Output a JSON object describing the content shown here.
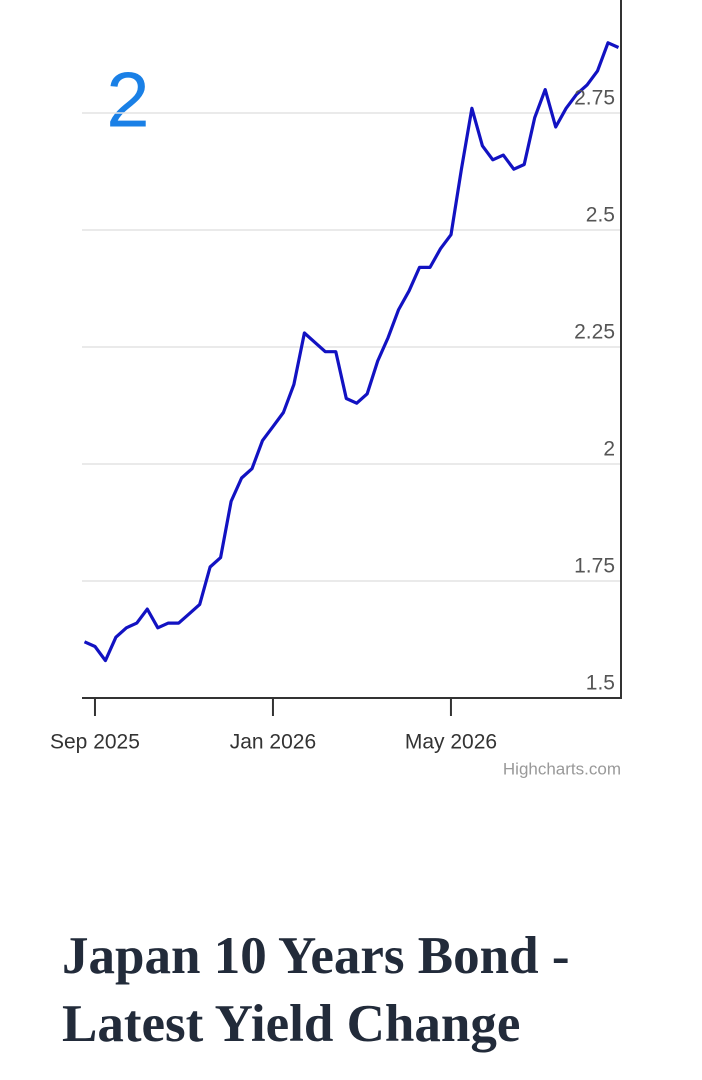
{
  "badge": "2",
  "heading": "Japan 10 Years Bond - Latest Yield Change",
  "chart_data": {
    "type": "line",
    "credits": "Highcharts.com",
    "categories": [
      null,
      "Sep 2025",
      null,
      null,
      null,
      null,
      null,
      null,
      null,
      null,
      null,
      null,
      null,
      null,
      null,
      null,
      null,
      null,
      "Jan 2026",
      null,
      null,
      null,
      null,
      null,
      null,
      null,
      null,
      null,
      null,
      null,
      null,
      null,
      null,
      null,
      null,
      "May 2026",
      null,
      null,
      null,
      null,
      null,
      null,
      null,
      null,
      null,
      null,
      null,
      null,
      null,
      null,
      null,
      null
    ],
    "series": [
      {
        "color": "#1212c2",
        "values": [
          1.62,
          1.61,
          1.58,
          1.63,
          1.65,
          1.66,
          1.69,
          1.65,
          1.66,
          1.66,
          1.68,
          1.7,
          1.78,
          1.8,
          1.92,
          1.97,
          1.99,
          2.05,
          2.08,
          2.11,
          2.17,
          2.28,
          2.26,
          2.24,
          2.24,
          2.14,
          2.13,
          2.15,
          2.22,
          2.27,
          2.33,
          2.37,
          2.42,
          2.42,
          2.46,
          2.49,
          2.63,
          2.76,
          2.68,
          2.65,
          2.66,
          2.63,
          2.64,
          2.74,
          2.8,
          2.72,
          2.76,
          2.79,
          2.81,
          2.84,
          2.9,
          2.89
        ]
      }
    ],
    "ylim": [
      1.5,
      3
    ],
    "yticks": [
      1.5,
      1.75,
      2,
      2.25,
      2.5,
      2.75
    ],
    "grid": true
  }
}
